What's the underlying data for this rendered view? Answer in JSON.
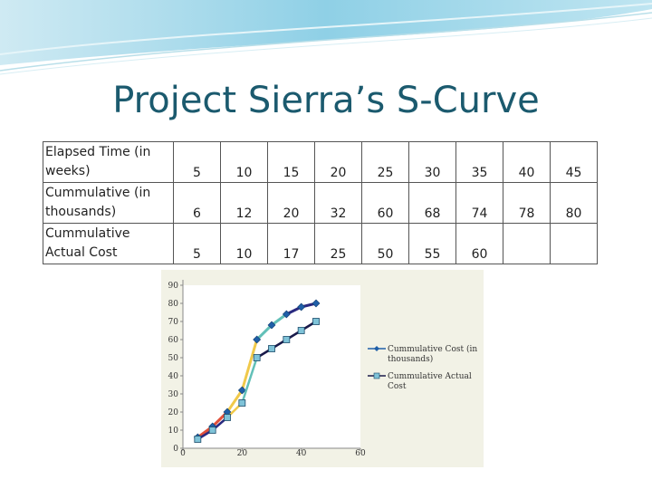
{
  "slide": {
    "title": "Project Sierra’s S-Curve"
  },
  "table": {
    "rows": [
      {
        "header": "Elapsed Time (in weeks)",
        "values": [
          "5",
          "10",
          "15",
          "20",
          "25",
          "30",
          "35",
          "40",
          "45"
        ]
      },
      {
        "header": "Cummulative (in thousands)",
        "values": [
          "6",
          "12",
          "20",
          "32",
          "60",
          "68",
          "74",
          "78",
          "80"
        ]
      },
      {
        "header": "Cummulative Actual Cost",
        "values": [
          "5",
          "10",
          "17",
          "25",
          "50",
          "55",
          "60",
          "",
          ""
        ]
      }
    ]
  },
  "colors": {
    "title": "#1b5a6e",
    "plot_background": "#f2f2e6",
    "series_cost": "#1f5fa8",
    "series_actual": "#1a1a4a",
    "series_actual_marker": "#7fc3d8",
    "segment_colors": [
      "#e0503a",
      "#f0c94a",
      "#62c0b8",
      "#2a2a80"
    ]
  },
  "chart_data": {
    "type": "line",
    "xlim": [
      0,
      60
    ],
    "ylim": [
      0,
      90
    ],
    "x_ticks": [
      "0",
      "20",
      "40",
      "60"
    ],
    "y_ticks": [
      "0",
      "10",
      "20",
      "30",
      "40",
      "50",
      "60",
      "70",
      "80",
      "90"
    ],
    "grid": false,
    "legend_position": "right",
    "series": [
      {
        "name": "Cummulative Cost (in thousands)",
        "marker": "diamond",
        "x": [
          5,
          10,
          15,
          20,
          25,
          30,
          35,
          40,
          45
        ],
        "y": [
          6,
          12,
          20,
          32,
          60,
          68,
          74,
          78,
          80
        ]
      },
      {
        "name": "Cummulative Actual Cost",
        "marker": "square",
        "x": [
          5,
          10,
          15,
          20,
          25,
          30,
          35,
          40,
          45
        ],
        "y": [
          5,
          10,
          17,
          25,
          50,
          55,
          60,
          65,
          70
        ]
      }
    ]
  }
}
